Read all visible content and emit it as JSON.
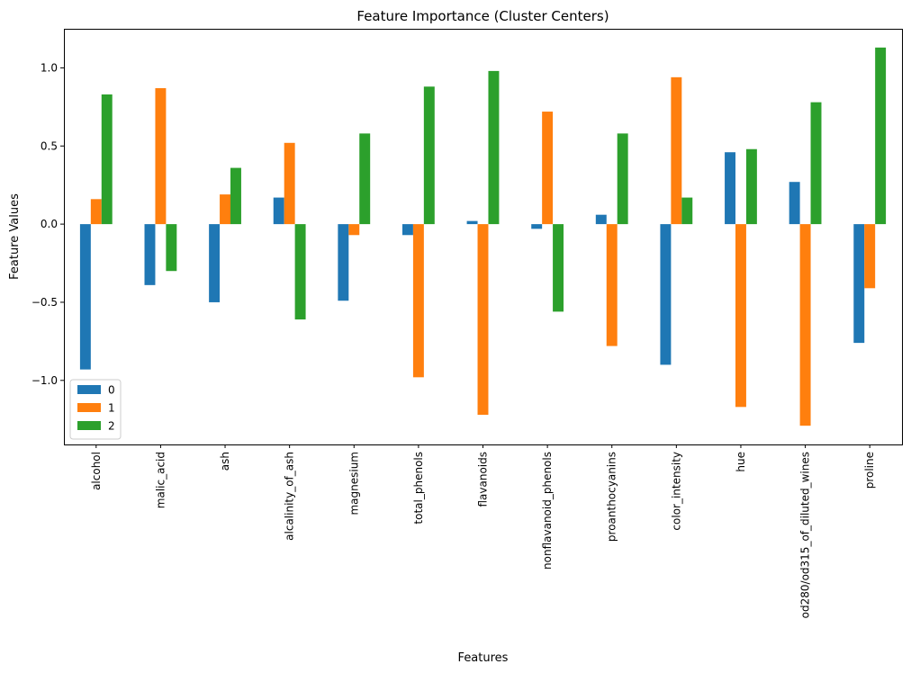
{
  "chart_data": {
    "type": "bar",
    "title": "Feature Importance (Cluster Centers)",
    "xlabel": "Features",
    "ylabel": "Feature Values",
    "categories": [
      "alcohol",
      "malic_acid",
      "ash",
      "alcalinity_of_ash",
      "magnesium",
      "total_phenols",
      "flavanoids",
      "nonflavanoid_phenols",
      "proanthocyanins",
      "color_intensity",
      "hue",
      "od280/od315_of_diluted_wines",
      "proline"
    ],
    "series": [
      {
        "name": "0",
        "color": "#1f77b4",
        "values": [
          -0.93,
          -0.39,
          -0.5,
          0.17,
          -0.49,
          -0.07,
          0.02,
          -0.03,
          0.06,
          -0.9,
          0.46,
          0.27,
          -0.76
        ]
      },
      {
        "name": "1",
        "color": "#ff7f0e",
        "values": [
          0.16,
          0.87,
          0.19,
          0.52,
          -0.07,
          -0.98,
          -1.22,
          0.72,
          -0.78,
          0.94,
          -1.17,
          -1.29,
          -0.41
        ]
      },
      {
        "name": "2",
        "color": "#2ca02c",
        "values": [
          0.83,
          -0.3,
          0.36,
          -0.61,
          0.58,
          0.88,
          0.98,
          -0.56,
          0.58,
          0.17,
          0.48,
          0.78,
          1.13
        ]
      }
    ],
    "ylim": [
      -1.41,
      1.25
    ],
    "yticks": [
      -1.0,
      -0.5,
      0.0,
      0.5,
      1.0
    ],
    "ytick_labels": [
      "−1.0",
      "−0.5",
      "0.0",
      "0.5",
      "1.0"
    ],
    "grid": false,
    "legend_position": "lower-left"
  }
}
